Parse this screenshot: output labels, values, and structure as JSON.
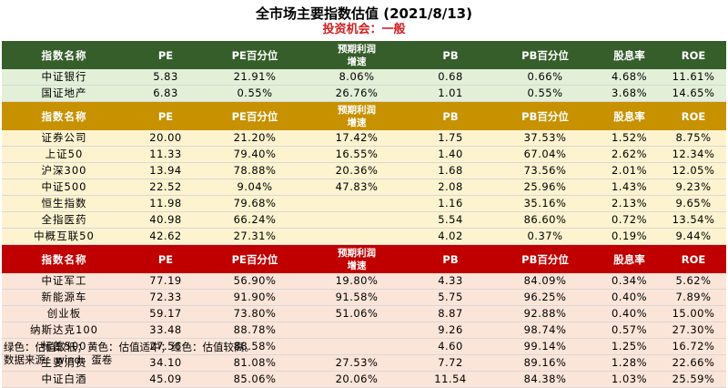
{
  "title": "全市场主要指数估值 (2021/8/13)",
  "subtitle": "投资机会：一般",
  "columns": [
    "指数名称",
    "PE",
    "PE百分位",
    "预期利润增速",
    "PB",
    "PB百分位",
    "股息率",
    "ROE"
  ],
  "sections": [
    {
      "color": "green",
      "header": [
        "指数名称",
        "PE",
        "PE百分位",
        "预期利润\n增速",
        "PB",
        "PB百分位",
        "股息率",
        "ROE"
      ],
      "rows": [
        [
          "中证银行",
          "5.83",
          "21.91%",
          "8.06%",
          "0.68",
          "0.66%",
          "4.68%",
          "11.61%"
        ],
        [
          "国证地产",
          "6.83",
          "0.55%",
          "26.76%",
          "1.01",
          "0.55%",
          "3.68%",
          "14.65%"
        ]
      ]
    },
    {
      "color": "gold",
      "header": [
        "指数名称",
        "PE",
        "PE百分位",
        "预期利润\n增速",
        "PB",
        "PB百分位",
        "股息率",
        "ROE"
      ],
      "rows": [
        [
          "证券公司",
          "20.00",
          "21.20%",
          "17.42%",
          "1.75",
          "37.53%",
          "1.52%",
          "8.75%"
        ],
        [
          "上证50",
          "11.33",
          "79.40%",
          "16.55%",
          "1.40",
          "67.04%",
          "2.62%",
          "12.34%"
        ],
        [
          "沪深300",
          "13.94",
          "78.88%",
          "20.36%",
          "1.68",
          "73.56%",
          "2.01%",
          "12.05%"
        ],
        [
          "中证500",
          "22.52",
          "9.04%",
          "47.83%",
          "2.08",
          "25.96%",
          "1.43%",
          "9.23%"
        ],
        [
          "恒生指数",
          "11.98",
          "79.68%",
          "",
          "1.16",
          "35.16%",
          "2.13%",
          "9.65%"
        ],
        [
          "全指医药",
          "40.98",
          "66.24%",
          "",
          "5.54",
          "86.60%",
          "0.72%",
          "13.54%"
        ],
        [
          "中概互联50",
          "42.62",
          "27.31%",
          "",
          "4.02",
          "0.37%",
          "0.19%",
          "9.44%"
        ]
      ]
    },
    {
      "color": "red",
      "header": [
        "指数名称",
        "PE",
        "PE百分位",
        "预期利润\n增速",
        "PB",
        "PB百分位",
        "股息率",
        "ROE"
      ],
      "rows": [
        [
          "中证军工",
          "77.19",
          "56.90%",
          "19.80%",
          "4.33",
          "84.09%",
          "0.34%",
          "5.62%"
        ],
        [
          "新能源车",
          "72.33",
          "91.90%",
          "91.58%",
          "5.75",
          "96.25%",
          "0.40%",
          "7.89%"
        ],
        [
          "创业板",
          "59.17",
          "73.80%",
          "51.06%",
          "8.87",
          "92.88%",
          "0.40%",
          "15.00%"
        ],
        [
          "纳斯达克100",
          "33.48",
          "88.78%",
          "",
          "9.26",
          "98.74%",
          "0.57%",
          "27.30%"
        ],
        [
          "标普500",
          "27.56",
          "88.58%",
          "",
          "4.60",
          "99.14%",
          "1.25%",
          "16.72%"
        ],
        [
          "主要消费",
          "34.10",
          "81.08%",
          "27.53%",
          "7.72",
          "89.16%",
          "1.28%",
          "22.66%"
        ],
        [
          "中证白酒",
          "45.09",
          "85.06%",
          "20.06%",
          "11.54",
          "84.38%",
          "1.03%",
          "25.59%"
        ]
      ]
    }
  ],
  "footnote_legend": "绿色：估值较低；黄色：估值适中；红色：估值较高。",
  "footnote_source": "数据来源：wind、蛋卷",
  "colors": {
    "green_header": "#365e2a",
    "gold_header": "#c79100",
    "red_header": "#c00000",
    "green_row": "#e3f0d8",
    "gold_row": "#fdf3cf",
    "red_row": "#fbe4d8",
    "subtitle": "#d11f1f"
  }
}
